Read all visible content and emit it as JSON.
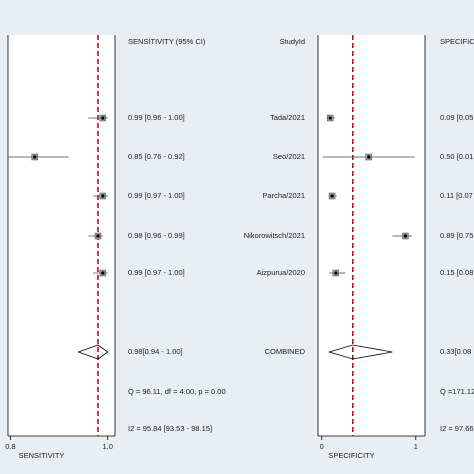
{
  "chart_data": {
    "type": "forest",
    "study_header": "StudyId",
    "studies": [
      "Tada/2021",
      "Seo/2021",
      "Parcha/2021",
      "Nikorowitsch/2021",
      "Aizpurua/2020"
    ],
    "combined_label": "COMBINED",
    "panels": [
      {
        "name": "SENSITIVITY",
        "ci_header": "SENSITIVITY (95% CI)",
        "values": [
          0.99,
          0.85,
          0.99,
          0.98,
          0.99
        ],
        "lower": [
          0.96,
          0.76,
          0.97,
          0.96,
          0.97
        ],
        "upper": [
          1.0,
          0.92,
          1.0,
          0.99,
          1.0
        ],
        "value_labels": [
          "0.99 [0.96 - 1.00]",
          "0.85 [0.76 - 0.92]",
          "0.99 [0.97 - 1.00]",
          "0.98 [0.96 - 0.99]",
          "0.99 [0.97 - 1.00]"
        ],
        "combined": {
          "value": 0.98,
          "lower": 0.94,
          "upper": 1.0,
          "label": "0.98[0.94 - 1.00]"
        },
        "q_label": "Q = 96.11, df = 4.00, p =  0.00",
        "i2_label": "I2 = 95.84 [93.53 - 98.15]",
        "xlim": [
          0.795,
          1.015
        ],
        "xticks": [
          0.8,
          {
            "value": 1.0,
            "label": "1.0"
          }
        ],
        "ref_color": "#c00000"
      },
      {
        "name": "SPECIFICITY",
        "ci_header": "SPECIFICI",
        "values": [
          0.09,
          0.5,
          0.11,
          0.89,
          0.15
        ],
        "lower": [
          0.05,
          0.01,
          0.07,
          0.75,
          0.08
        ],
        "upper": [
          0.14,
          0.99,
          0.16,
          0.96,
          0.25
        ],
        "value_labels": [
          "0.09 [0.05",
          "0.50 [0.01",
          "0.11 [0.07",
          "0.89 [0.75",
          "0.15 [0.08"
        ],
        "combined": {
          "value": 0.33,
          "lower": 0.08,
          "upper": 0.75,
          "label": "0.33[0.08"
        },
        "q_label": "Q =171.12",
        "i2_label": "I2 = 97.66",
        "xlim": [
          -0.04,
          1.098
        ],
        "xticks": [
          0,
          1
        ],
        "ref_color": "#c00000"
      }
    ]
  }
}
